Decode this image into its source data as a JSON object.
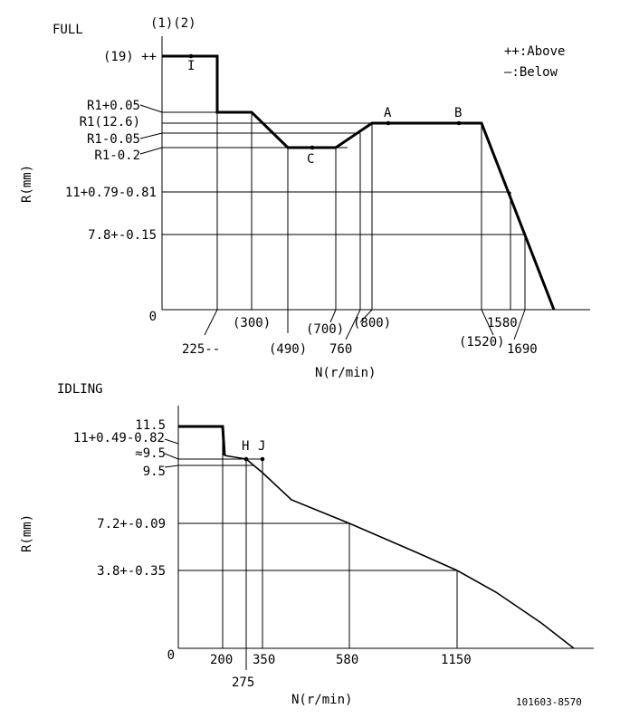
{
  "full": {
    "title": "FULL",
    "top_marker": "(1)(2)",
    "legend": {
      "above": "++:Above",
      "below": "—:Below"
    },
    "ylabel": "R(mm)",
    "xlabel": "N(r/min)",
    "y_labels": [
      "(19) ++",
      "R1+0.05",
      "R1(12.6)",
      "R1-0.05",
      "R1-0.2",
      "11+0.79-0.81",
      "7.8+-0.15",
      "0"
    ],
    "x_labels": [
      "225--",
      "(300)",
      "(490)",
      "(700)",
      "760",
      "(800)",
      "(1520)",
      "1580",
      "1690"
    ],
    "points": {
      "I": "I",
      "A": "A",
      "B": "B",
      "C": "C"
    }
  },
  "idling": {
    "title": "IDLING",
    "ylabel": "R(mm)",
    "xlabel": "N(r/min)",
    "y_labels": [
      "11.5",
      "11+0.49-0.82",
      "≈9.5",
      "9.5",
      "7.2+-0.09",
      "3.8+-0.35",
      "0"
    ],
    "x_labels": [
      "200",
      "275",
      "350",
      "580",
      "1150"
    ],
    "points": {
      "H": "H",
      "J": "J"
    }
  },
  "code": "101603-8570"
}
